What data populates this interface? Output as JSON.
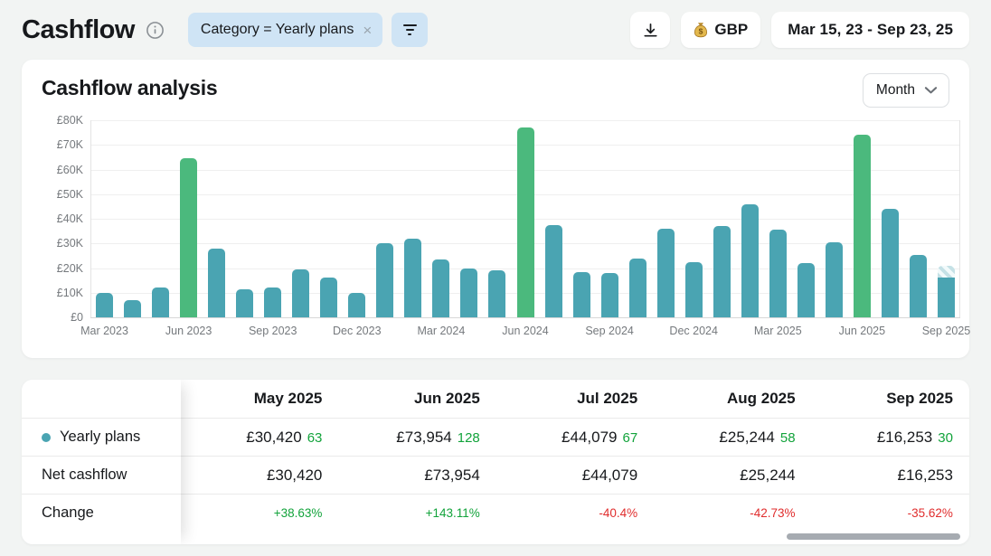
{
  "colors": {
    "teal": "#4aa4b2",
    "green_bar": "#4bb97d",
    "green_text": "#12a33b",
    "red_text": "#e02d2d",
    "chip_bg": "#cfe4f5"
  },
  "header": {
    "title": "Cashflow",
    "filter_chip": "Category = Yearly plans",
    "filter_chip_close": "×",
    "currency": "GBP",
    "date_range": "Mar 15, 23 - Sep 23, 25"
  },
  "chart": {
    "title": "Cashflow analysis",
    "granularity": "Month",
    "chart_data": {
      "type": "bar",
      "title": "Cashflow analysis",
      "currency": "GBP",
      "ylim": [
        0,
        80000
      ],
      "y_ticks_desc": [
        "£80K",
        "£70K",
        "£60K",
        "£50K",
        "£40K",
        "£30K",
        "£20K",
        "£10K",
        "£0"
      ],
      "x_tick_every": 3,
      "x": [
        "Mar 2023",
        "Apr 2023",
        "May 2023",
        "Jun 2023",
        "Jul 2023",
        "Aug 2023",
        "Sep 2023",
        "Oct 2023",
        "Nov 2023",
        "Dec 2023",
        "Jan 2024",
        "Feb 2024",
        "Mar 2024",
        "Apr 2024",
        "May 2024",
        "Jun 2024",
        "Jul 2024",
        "Aug 2024",
        "Sep 2024",
        "Oct 2024",
        "Nov 2024",
        "Dec 2024",
        "Jan 2025",
        "Feb 2025",
        "Mar 2025",
        "Apr 2025",
        "May 2025",
        "Jun 2025",
        "Jul 2025",
        "Aug 2025",
        "Sep 2025"
      ],
      "values": [
        10000,
        7000,
        12000,
        64500,
        28000,
        11500,
        12000,
        19500,
        16000,
        10000,
        30000,
        32000,
        23500,
        20000,
        19000,
        77000,
        37500,
        18500,
        18000,
        24000,
        36000,
        22500,
        37000,
        46000,
        35500,
        22000,
        30420,
        73954,
        44079,
        25244,
        16253
      ],
      "highlight_indices": [
        3,
        15,
        27
      ],
      "partial_last_bar": {
        "solid_value": 16253,
        "hatch_to_value": 21000
      },
      "grid": true,
      "legend": false
    }
  },
  "table": {
    "columns": [
      "May 2025",
      "Jun 2025",
      "Jul 2025",
      "Aug 2025",
      "Sep 2025"
    ],
    "series_row": {
      "label": "Yearly plans",
      "cells": [
        {
          "amount": "£30,420",
          "count": "63"
        },
        {
          "amount": "£73,954",
          "count": "128"
        },
        {
          "amount": "£44,079",
          "count": "67"
        },
        {
          "amount": "£25,244",
          "count": "58"
        },
        {
          "amount": "£16,253",
          "count": "30"
        }
      ]
    },
    "net_row": {
      "label": "Net cashflow",
      "cells": [
        "£30,420",
        "£73,954",
        "£44,079",
        "£25,244",
        "£16,253"
      ]
    },
    "change_row": {
      "label": "Change",
      "cells": [
        {
          "text": "+38.63%",
          "positive": true
        },
        {
          "text": "+143.11%",
          "positive": true
        },
        {
          "text": "-40.4%",
          "positive": false
        },
        {
          "text": "-42.73%",
          "positive": false
        },
        {
          "text": "-35.62%",
          "positive": false
        }
      ]
    }
  }
}
